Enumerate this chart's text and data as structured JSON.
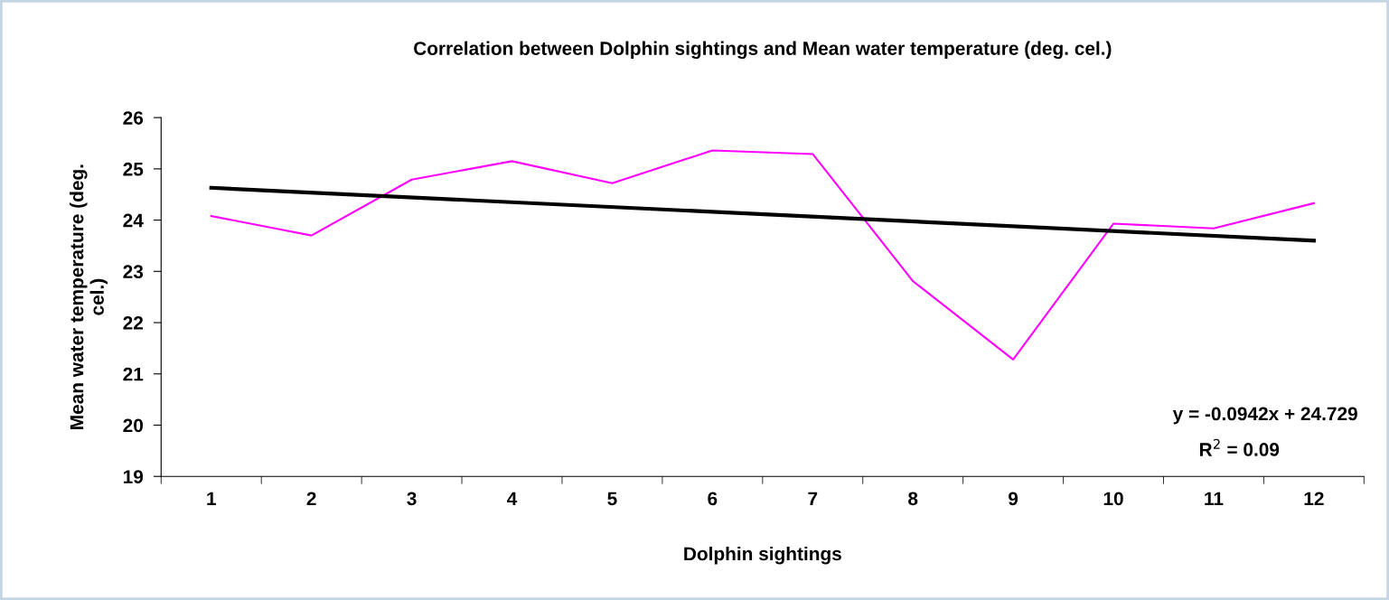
{
  "chart_data": {
    "type": "line",
    "title": "Correlation between Dolphin sightings and Mean water temperature (deg. cel.)",
    "xlabel": "Dolphin sightings",
    "ylabel": "Mean water temperature (deg.\ncel.)",
    "categories": [
      "1",
      "2",
      "3",
      "4",
      "5",
      "6",
      "7",
      "8",
      "9",
      "10",
      "11",
      "12"
    ],
    "series": [
      {
        "color": "#ff00ff",
        "values": [
          24.08,
          23.7,
          24.79,
          25.15,
          24.72,
          25.36,
          25.29,
          22.81,
          21.28,
          23.93,
          23.84,
          24.33
        ]
      },
      {
        "color": "#000000",
        "x": [
          "1",
          "12"
        ],
        "values": [
          24.63,
          23.6
        ]
      }
    ],
    "ylim": [
      19,
      26
    ],
    "yticks": [
      19,
      20,
      21,
      22,
      23,
      24,
      25,
      26
    ],
    "grid": false,
    "legend": false,
    "marker": "none",
    "line_style": "solid",
    "annotations": [
      "y = -0.0942x + 24.729",
      "R$^{2}$ = 0.09"
    ]
  }
}
